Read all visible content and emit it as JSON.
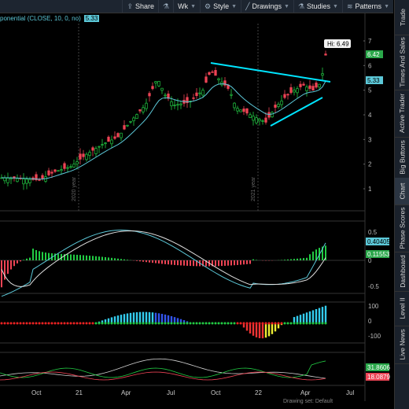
{
  "toolbar": {
    "items": [
      {
        "icon": "share-icon",
        "label": "Share"
      },
      {
        "icon": "flask-icon",
        "label": ""
      },
      {
        "icon": "",
        "label": "Wk"
      },
      {
        "icon": "style-icon",
        "label": "Style"
      },
      {
        "icon": "drawings-icon",
        "label": "Drawings"
      },
      {
        "icon": "studies-icon",
        "label": "Studies"
      },
      {
        "icon": "patterns-icon",
        "label": "Patterns"
      }
    ]
  },
  "study_header": {
    "name": "ponential (CLOSE, 10, 0, no)",
    "value": "5.33"
  },
  "price_panel": {
    "hi_label": "Hi: 6.49",
    "last_price": "6.42",
    "ema_price": "5.33",
    "yticks": [
      "7",
      "6",
      "5",
      "4",
      "3",
      "2",
      "1"
    ],
    "year_marks": [
      "2020 year",
      "2021 year"
    ]
  },
  "macd_panel": {
    "value1": "0.40405",
    "value2": "0.11553",
    "yticks": [
      "0.5",
      "0",
      "-0.5"
    ]
  },
  "osc_panel": {
    "yticks": [
      "100",
      "0",
      "-100"
    ]
  },
  "bottom_panel": {
    "value1": "31.8606",
    "value2": "18.0879"
  },
  "x_axis": [
    "Oct",
    "21",
    "Apr",
    "Jul",
    "Oct",
    "22",
    "Apr",
    "Jul"
  ],
  "side_tabs": [
    "Trade",
    "Times And Sales",
    "Active Trader",
    "Big Buttons",
    "Chart",
    "Phase Scores",
    "Dashboard",
    "Level II",
    "Live News"
  ],
  "status": {
    "text": "Drawing set: Default"
  },
  "colors": {
    "up": "#22cc44",
    "down": "#ee4455",
    "ema": "#5cc8d8",
    "trend": "#00e5ff",
    "label_green": "#2aa84a"
  }
}
